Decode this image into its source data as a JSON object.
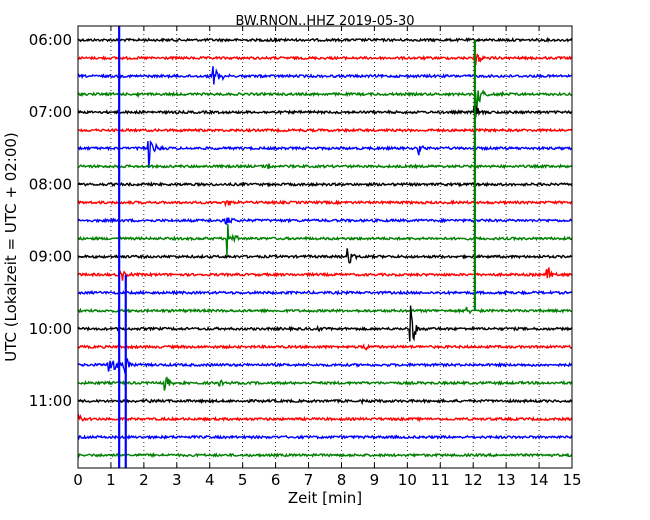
{
  "chart_data": {
    "type": "line",
    "title": "BW.RNON..HHZ 2019-05-30",
    "xlabel": "Zeit  [min]",
    "ylabel": "UTC (Lokalzeit = UTC + 02:00)",
    "xlim": [
      0,
      15
    ],
    "xticks": [
      0,
      1,
      2,
      3,
      4,
      5,
      6,
      7,
      8,
      9,
      10,
      11,
      12,
      13,
      14,
      15
    ],
    "yticks": [
      "06:00",
      "07:00",
      "08:00",
      "09:00",
      "10:00",
      "11:00"
    ],
    "grid": "vertical dotted at each minute",
    "legend": "none",
    "trace_colors": [
      "#000000",
      "#ff0000",
      "#0000ff",
      "#008000"
    ],
    "rows": [
      {
        "start": "06:00",
        "color": "#000000",
        "events": [
          {
            "t": 5.8,
            "amp": 0.3
          }
        ]
      },
      {
        "start": "06:15",
        "color": "#ff0000",
        "events": [
          {
            "t": 12.05,
            "amp": 1.0
          }
        ]
      },
      {
        "start": "06:30",
        "color": "#0000ff",
        "events": [
          {
            "t": 4.08,
            "amp": 1.5
          },
          {
            "t": 4.3,
            "amp": 0.4
          }
        ]
      },
      {
        "start": "06:45",
        "color": "#008000",
        "events": [
          {
            "t": 1.75,
            "amp": 0.3
          },
          {
            "t": 12.1,
            "amp": 2.0
          },
          {
            "t": 12.9,
            "amp": 0.3
          }
        ]
      },
      {
        "start": "07:00",
        "color": "#000000",
        "events": [
          {
            "t": 12.05,
            "amp": 1.0
          }
        ]
      },
      {
        "start": "07:15",
        "color": "#ff0000",
        "events": []
      },
      {
        "start": "07:30",
        "color": "#0000ff",
        "events": [
          {
            "t": 2.15,
            "amp": 2.0
          },
          {
            "t": 10.35,
            "amp": 0.6
          }
        ]
      },
      {
        "start": "07:45",
        "color": "#008000",
        "events": [
          {
            "t": 5.75,
            "amp": 0.4
          }
        ]
      },
      {
        "start": "08:00",
        "color": "#000000",
        "events": []
      },
      {
        "start": "08:15",
        "color": "#ff0000",
        "events": [
          {
            "t": 4.5,
            "amp": 0.5
          }
        ]
      },
      {
        "start": "08:30",
        "color": "#0000ff",
        "events": [
          {
            "t": 4.5,
            "amp": 0.8
          }
        ]
      },
      {
        "start": "08:45",
        "color": "#008000",
        "events": [
          {
            "t": 4.55,
            "amp": 2.0
          }
        ]
      },
      {
        "start": "09:00",
        "color": "#000000",
        "events": [
          {
            "t": 8.2,
            "amp": 0.9
          }
        ]
      },
      {
        "start": "09:15",
        "color": "#ff0000",
        "events": [
          {
            "t": 1.3,
            "amp": 0.8
          },
          {
            "t": 14.25,
            "amp": 1.0
          }
        ]
      },
      {
        "start": "09:30",
        "color": "#0000ff",
        "events": [
          {
            "t": 13.0,
            "amp": 0.2
          }
        ]
      },
      {
        "start": "09:45",
        "color": "#008000",
        "events": [
          {
            "t": 11.8,
            "amp": 0.4
          }
        ]
      },
      {
        "start": "10:00",
        "color": "#000000",
        "events": [
          {
            "t": 7.25,
            "amp": 0.3
          },
          {
            "t": 10.1,
            "amp": 2.5
          }
        ]
      },
      {
        "start": "10:15",
        "color": "#ff0000",
        "events": [
          {
            "t": 8.7,
            "amp": 0.4
          }
        ]
      },
      {
        "start": "10:30",
        "color": "#0000ff",
        "events": [
          {
            "t": 0.9,
            "amp": 1.5
          },
          {
            "t": 1.05,
            "amp": 1.2
          },
          {
            "t": 1.4,
            "amp": 1.4
          }
        ]
      },
      {
        "start": "10:45",
        "color": "#008000",
        "events": [
          {
            "t": 2.65,
            "amp": 0.8
          },
          {
            "t": 4.3,
            "amp": 0.3
          }
        ]
      },
      {
        "start": "11:00",
        "color": "#000000",
        "events": [
          {
            "t": 2.1,
            "amp": 0.3
          },
          {
            "t": 8.55,
            "amp": 0.3
          }
        ]
      },
      {
        "start": "11:15",
        "color": "#ff0000",
        "events": [
          {
            "t": 0.05,
            "amp": 0.4
          }
        ]
      },
      {
        "start": "11:30",
        "color": "#0000ff",
        "events": []
      },
      {
        "start": "11:45",
        "color": "#008000",
        "events": []
      }
    ],
    "long_signals": [
      {
        "t": 1.25,
        "from": "05:45",
        "to": "12:00",
        "color": "#0000ff"
      },
      {
        "t": 1.45,
        "from": "09:15",
        "to": "12:00",
        "color": "#0000ff"
      },
      {
        "t": 12.05,
        "from": "06:00",
        "to": "09:45",
        "color": "#008000"
      }
    ]
  }
}
